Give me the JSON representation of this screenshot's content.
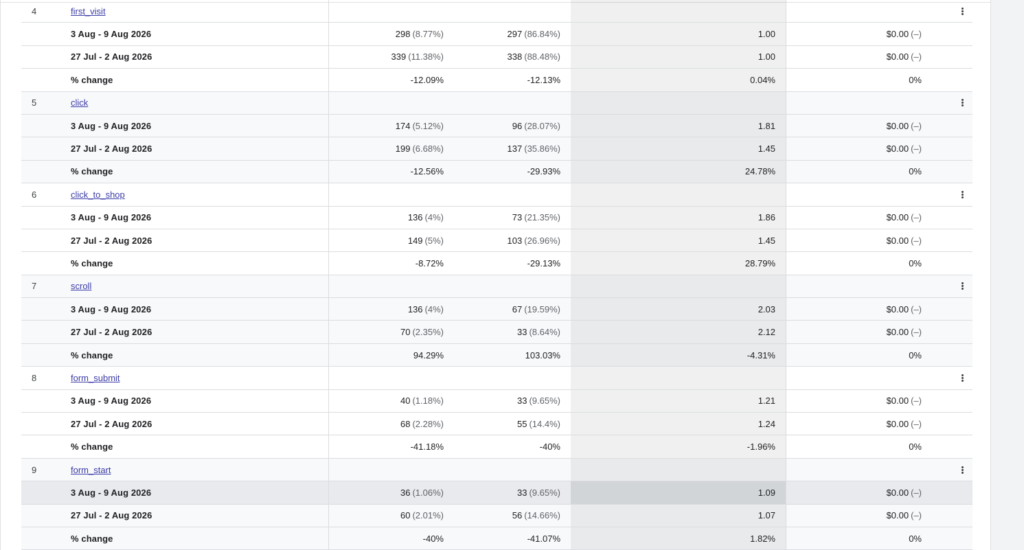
{
  "events": [
    {
      "rank": "4",
      "name": "first_visit",
      "rows": [
        {
          "label": "3 Aug - 9 Aug 2026",
          "m1": "298",
          "m1_pct": "(8.77%)",
          "m2": "297",
          "m2_pct": "(86.84%)",
          "m3": "1.00",
          "m4": "$0.00",
          "m4_pct": "(–)"
        },
        {
          "label": "27 Jul - 2 Aug 2026",
          "m1": "339",
          "m1_pct": "(11.38%)",
          "m2": "338",
          "m2_pct": "(88.48%)",
          "m3": "1.00",
          "m4": "$0.00",
          "m4_pct": "(–)"
        },
        {
          "label": "% change",
          "m1": "-12.09%",
          "m1_pct": "",
          "m2": "-12.13%",
          "m2_pct": "",
          "m3": "0.04%",
          "m4": "0%",
          "m4_pct": ""
        }
      ]
    },
    {
      "rank": "5",
      "name": "click",
      "rows": [
        {
          "label": "3 Aug - 9 Aug 2026",
          "m1": "174",
          "m1_pct": "(5.12%)",
          "m2": "96",
          "m2_pct": "(28.07%)",
          "m3": "1.81",
          "m4": "$0.00",
          "m4_pct": "(–)"
        },
        {
          "label": "27 Jul - 2 Aug 2026",
          "m1": "199",
          "m1_pct": "(6.68%)",
          "m2": "137",
          "m2_pct": "(35.86%)",
          "m3": "1.45",
          "m4": "$0.00",
          "m4_pct": "(–)"
        },
        {
          "label": "% change",
          "m1": "-12.56%",
          "m1_pct": "",
          "m2": "-29.93%",
          "m2_pct": "",
          "m3": "24.78%",
          "m4": "0%",
          "m4_pct": ""
        }
      ]
    },
    {
      "rank": "6",
      "name": "click_to_shop",
      "rows": [
        {
          "label": "3 Aug - 9 Aug 2026",
          "m1": "136",
          "m1_pct": "(4%)",
          "m2": "73",
          "m2_pct": "(21.35%)",
          "m3": "1.86",
          "m4": "$0.00",
          "m4_pct": "(–)"
        },
        {
          "label": "27 Jul - 2 Aug 2026",
          "m1": "149",
          "m1_pct": "(5%)",
          "m2": "103",
          "m2_pct": "(26.96%)",
          "m3": "1.45",
          "m4": "$0.00",
          "m4_pct": "(–)"
        },
        {
          "label": "% change",
          "m1": "-8.72%",
          "m1_pct": "",
          "m2": "-29.13%",
          "m2_pct": "",
          "m3": "28.79%",
          "m4": "0%",
          "m4_pct": ""
        }
      ]
    },
    {
      "rank": "7",
      "name": "scroll",
      "rows": [
        {
          "label": "3 Aug - 9 Aug 2026",
          "m1": "136",
          "m1_pct": "(4%)",
          "m2": "67",
          "m2_pct": "(19.59%)",
          "m3": "2.03",
          "m4": "$0.00",
          "m4_pct": "(–)"
        },
        {
          "label": "27 Jul - 2 Aug 2026",
          "m1": "70",
          "m1_pct": "(2.35%)",
          "m2": "33",
          "m2_pct": "(8.64%)",
          "m3": "2.12",
          "m4": "$0.00",
          "m4_pct": "(–)"
        },
        {
          "label": "% change",
          "m1": "94.29%",
          "m1_pct": "",
          "m2": "103.03%",
          "m2_pct": "",
          "m3": "-4.31%",
          "m4": "0%",
          "m4_pct": ""
        }
      ]
    },
    {
      "rank": "8",
      "name": "form_submit",
      "rows": [
        {
          "label": "3 Aug - 9 Aug 2026",
          "m1": "40",
          "m1_pct": "(1.18%)",
          "m2": "33",
          "m2_pct": "(9.65%)",
          "m3": "1.21",
          "m4": "$0.00",
          "m4_pct": "(–)"
        },
        {
          "label": "27 Jul - 2 Aug 2026",
          "m1": "68",
          "m1_pct": "(2.28%)",
          "m2": "55",
          "m2_pct": "(14.4%)",
          "m3": "1.24",
          "m4": "$0.00",
          "m4_pct": "(–)"
        },
        {
          "label": "% change",
          "m1": "-41.18%",
          "m1_pct": "",
          "m2": "-40%",
          "m2_pct": "",
          "m3": "-1.96%",
          "m4": "0%",
          "m4_pct": ""
        }
      ]
    },
    {
      "rank": "9",
      "name": "form_start",
      "rows": [
        {
          "label": "3 Aug - 9 Aug 2026",
          "m1": "36",
          "m1_pct": "(1.06%)",
          "m2": "33",
          "m2_pct": "(9.65%)",
          "m3": "1.09",
          "m4": "$0.00",
          "m4_pct": "(–)",
          "hover": true
        },
        {
          "label": "27 Jul - 2 Aug 2026",
          "m1": "60",
          "m1_pct": "(2.01%)",
          "m2": "56",
          "m2_pct": "(14.66%)",
          "m3": "1.07",
          "m4": "$0.00",
          "m4_pct": "(–)"
        },
        {
          "label": "% change",
          "m1": "-40%",
          "m1_pct": "",
          "m2": "-41.07%",
          "m2_pct": "",
          "m3": "1.82%",
          "m4": "0%",
          "m4_pct": ""
        }
      ]
    }
  ],
  "icons": {
    "row_menu": "more-vert-icon"
  }
}
